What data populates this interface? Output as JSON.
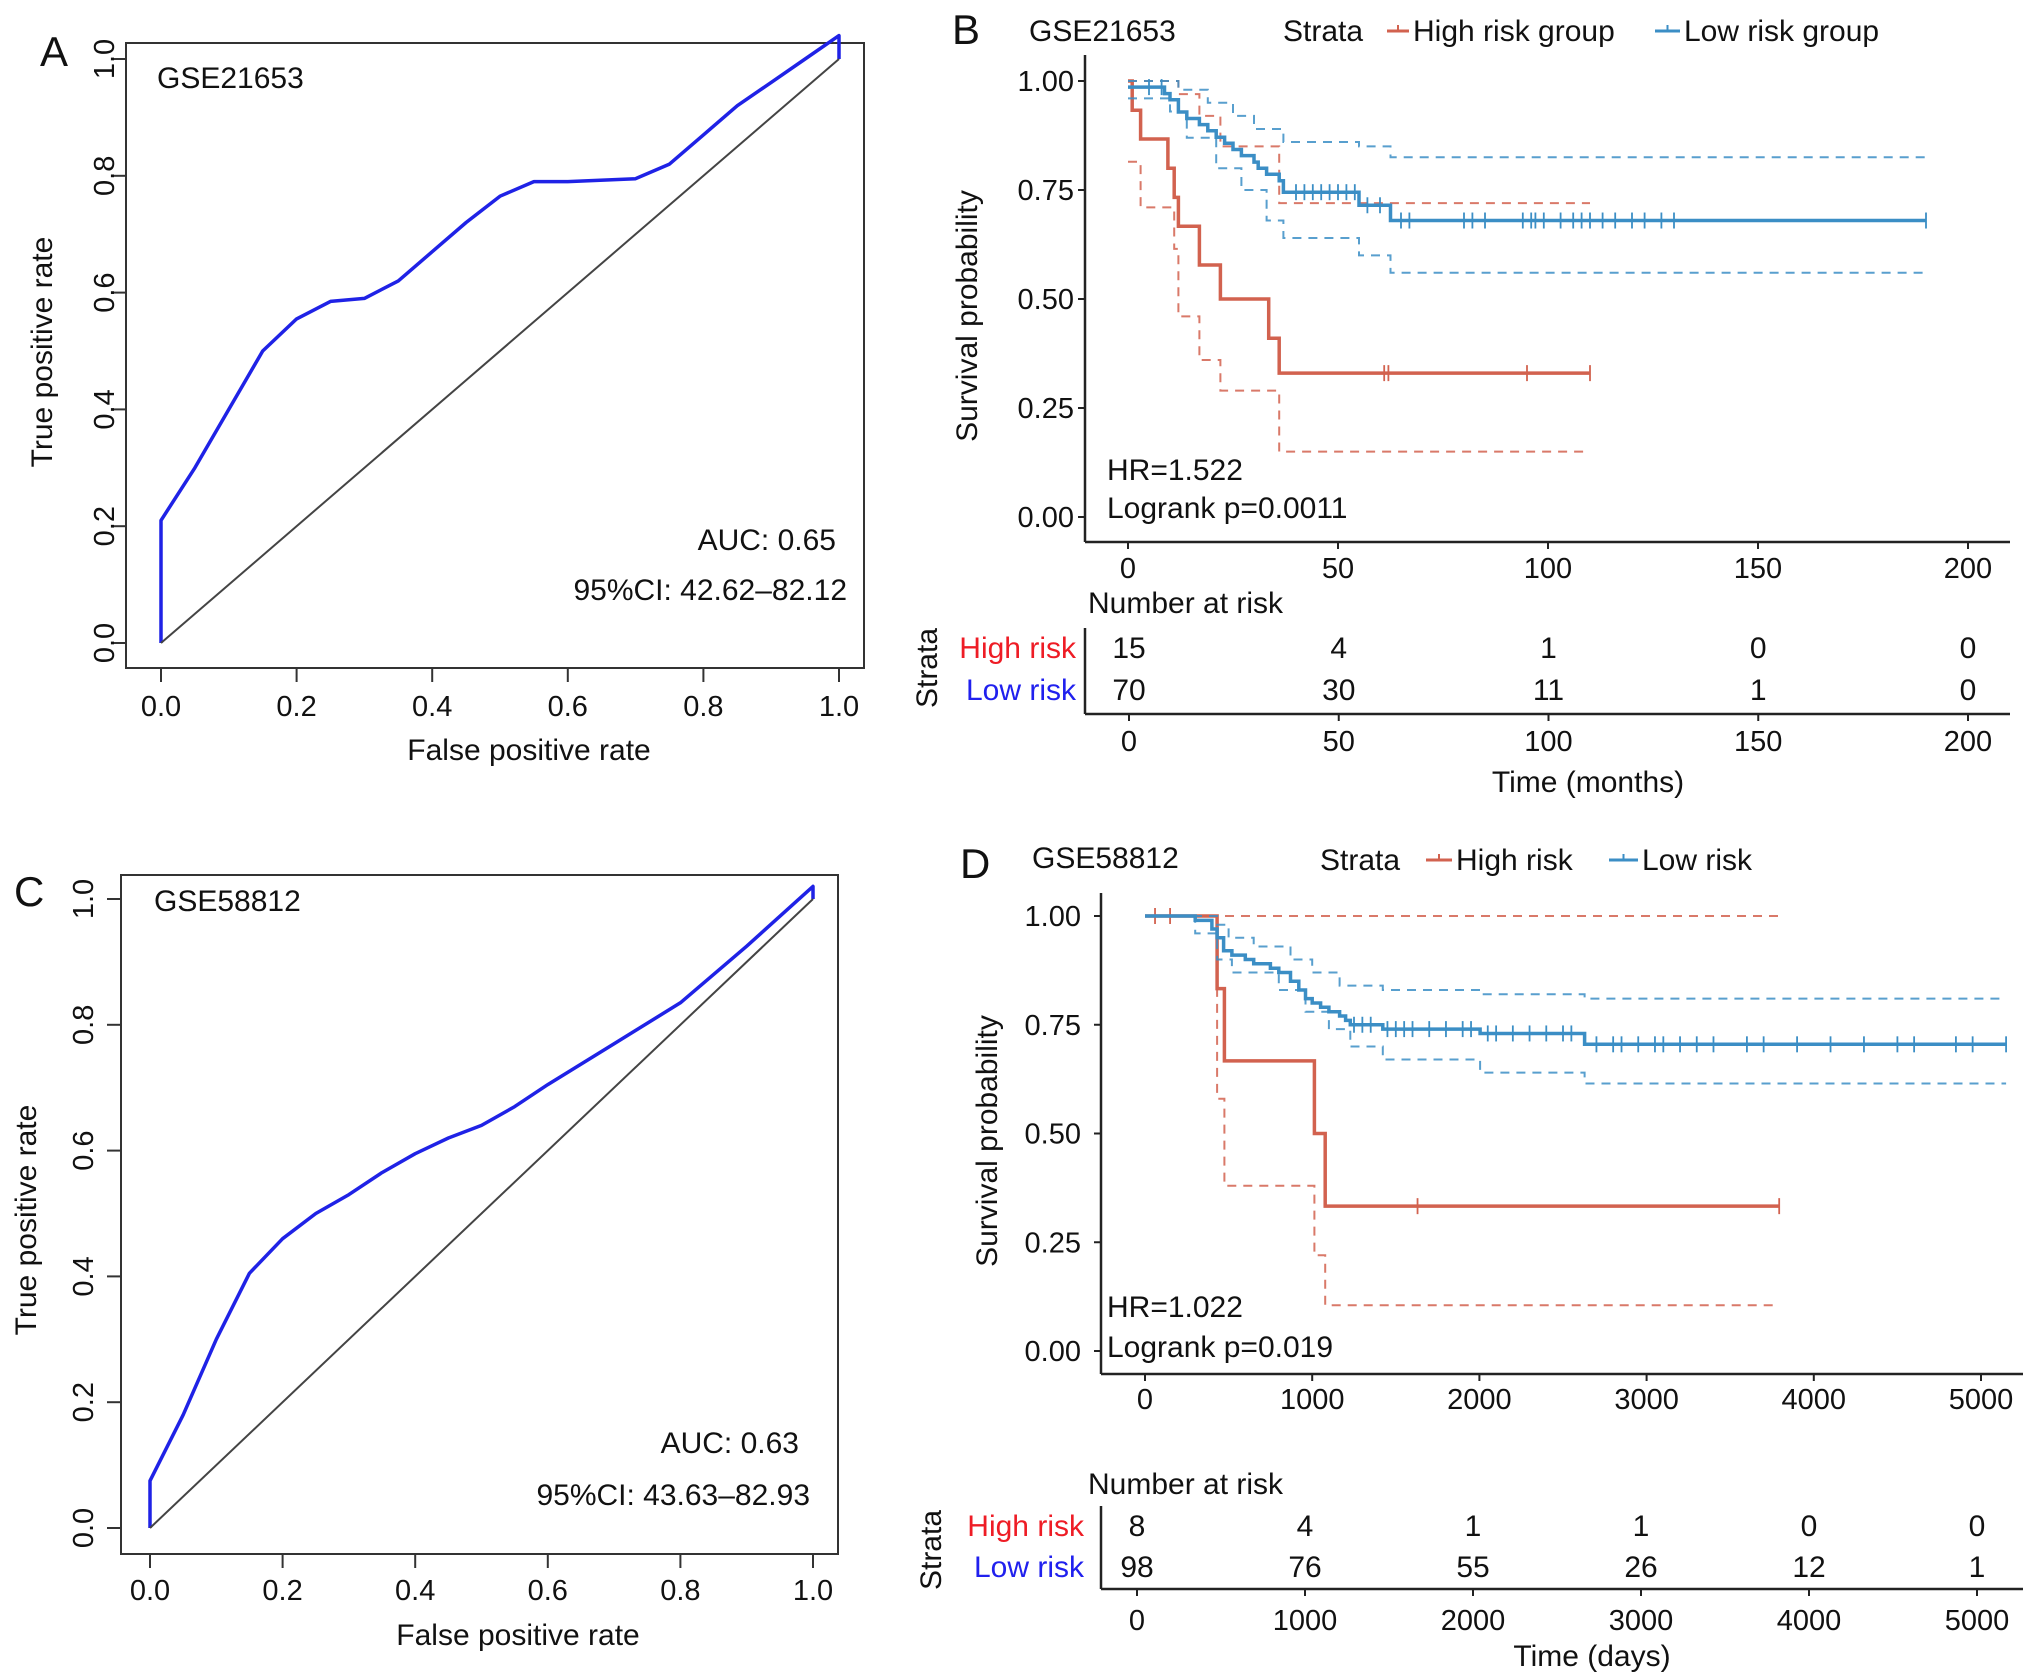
{
  "chart_data": [
    {
      "type": "line",
      "panel_label": "A",
      "title": "GSE21653",
      "xlabel": "False positive rate",
      "ylabel": "True positive rate",
      "xlim": [
        0,
        1
      ],
      "ylim": [
        0,
        1
      ],
      "xticks": [
        "0.0",
        "0.2",
        "0.4",
        "0.6",
        "0.8",
        "1.0"
      ],
      "yticks": [
        "0.0",
        "0.2",
        "0.4",
        "0.6",
        "0.8",
        "1.0"
      ],
      "grid": false,
      "series": [
        {
          "role": "roc",
          "color": "#1f22e6",
          "points": [
            [
              0,
              0
            ],
            [
              0,
              0.21
            ],
            [
              0.05,
              0.3
            ],
            [
              0.1,
              0.4
            ],
            [
              0.15,
              0.5
            ],
            [
              0.2,
              0.555
            ],
            [
              0.25,
              0.585
            ],
            [
              0.3,
              0.59
            ],
            [
              0.35,
              0.62
            ],
            [
              0.4,
              0.67
            ],
            [
              0.45,
              0.72
            ],
            [
              0.5,
              0.765
            ],
            [
              0.55,
              0.79
            ],
            [
              0.6,
              0.79
            ],
            [
              0.7,
              0.795
            ],
            [
              0.75,
              0.82
            ],
            [
              0.8,
              0.87
            ],
            [
              0.85,
              0.92
            ],
            [
              0.9,
              0.96
            ],
            [
              0.95,
              1.0
            ],
            [
              1.0,
              1.04
            ],
            [
              1.0,
              1.0
            ]
          ]
        },
        {
          "role": "reference",
          "color": "#444444",
          "points": [
            [
              0,
              0
            ],
            [
              1,
              1
            ]
          ]
        }
      ],
      "annotations": [
        "AUC:  0.65",
        "95%CI:  42.62–82.12"
      ]
    },
    {
      "type": "line",
      "subtype": "kaplan-meier",
      "panel_label": "B",
      "title": "GSE21653",
      "legend_title": "Strata",
      "legend_position": "top",
      "xlabel": "Time (months)",
      "ylabel": "Survival probability",
      "xlim": [
        0,
        200
      ],
      "ylim": [
        0,
        1
      ],
      "xticks": [
        "0",
        "50",
        "100",
        "150",
        "200"
      ],
      "yticks": [
        "0.00",
        "0.25",
        "0.50",
        "0.75",
        "1.00"
      ],
      "series": [
        {
          "name": "High risk group",
          "color": "#d2624f",
          "steps": [
            [
              0,
              1
            ],
            [
              1,
              0.933
            ],
            [
              3,
              0.867
            ],
            [
              9.5,
              0.8
            ],
            [
              11,
              0.733
            ],
            [
              12,
              0.667
            ],
            [
              17,
              0.578
            ],
            [
              22,
              0.5
            ],
            [
              33.5,
              0.41
            ],
            [
              36,
              0.33
            ]
          ],
          "end": 110,
          "ci_upper": [
            [
              0,
              1
            ],
            [
              12,
              0.97
            ],
            [
              17,
              0.92
            ],
            [
              22,
              0.85
            ],
            [
              36,
              0.72
            ]
          ],
          "ci_lower": [
            [
              0,
              0.815
            ],
            [
              3,
              0.71
            ],
            [
              11,
              0.615
            ],
            [
              12,
              0.46
            ],
            [
              17,
              0.36
            ],
            [
              22,
              0.29
            ],
            [
              36,
              0.15
            ]
          ],
          "censored": [
            61,
            62,
            95,
            110
          ]
        },
        {
          "name": "Low risk group",
          "color": "#3b8ec5",
          "steps": [
            [
              0,
              0.986
            ],
            [
              8.7,
              0.971
            ],
            [
              10,
              0.957
            ],
            [
              12,
              0.929
            ],
            [
              14,
              0.914
            ],
            [
              17,
              0.9
            ],
            [
              19,
              0.886
            ],
            [
              21,
              0.871
            ],
            [
              23,
              0.857
            ],
            [
              25,
              0.843
            ],
            [
              27,
              0.829
            ],
            [
              30,
              0.814
            ],
            [
              31,
              0.8
            ],
            [
              33,
              0.786
            ],
            [
              36,
              0.771
            ],
            [
              37,
              0.745
            ],
            [
              55,
              0.715
            ],
            [
              62.5,
              0.68
            ]
          ],
          "end": 190,
          "ci_upper": [
            [
              0,
              1
            ],
            [
              12,
              0.98
            ],
            [
              19,
              0.95
            ],
            [
              25,
              0.92
            ],
            [
              30,
              0.89
            ],
            [
              37,
              0.86
            ],
            [
              55,
              0.85
            ],
            [
              62.5,
              0.825
            ]
          ],
          "ci_lower": [
            [
              0,
              0.96
            ],
            [
              10,
              0.93
            ],
            [
              14,
              0.87
            ],
            [
              21,
              0.8
            ],
            [
              27,
              0.75
            ],
            [
              33,
              0.68
            ],
            [
              37,
              0.64
            ],
            [
              55,
              0.6
            ],
            [
              62.5,
              0.56
            ]
          ],
          "censored": [
            5,
            8,
            40,
            42,
            44,
            46,
            48,
            50,
            52,
            54,
            57,
            60,
            65,
            67,
            80,
            82,
            85,
            94,
            96,
            97,
            99,
            103,
            106,
            108,
            110,
            113,
            116,
            120,
            123,
            127,
            130,
            190
          ]
        }
      ],
      "annotations": [
        "HR=1.522",
        "Logrank p=0.0011"
      ],
      "risk_table": {
        "title": "Number at risk",
        "ylabel": "Strata",
        "times": [
          "0",
          "50",
          "100",
          "150",
          "200"
        ],
        "rows": [
          {
            "label": "High risk",
            "color": "#ee1c25",
            "values": [
              "15",
              "4",
              "1",
              "0",
              "0"
            ]
          },
          {
            "label": "Low risk",
            "color": "#2020ee",
            "values": [
              "70",
              "30",
              "11",
              "1",
              "0"
            ]
          }
        ]
      }
    },
    {
      "type": "line",
      "panel_label": "C",
      "title": "GSE58812",
      "xlabel": "False positive rate",
      "ylabel": "True positive rate",
      "xlim": [
        0,
        1
      ],
      "ylim": [
        0,
        1
      ],
      "xticks": [
        "0.0",
        "0.2",
        "0.4",
        "0.6",
        "0.8",
        "1.0"
      ],
      "yticks": [
        "0.0",
        "0.2",
        "0.4",
        "0.6",
        "0.8",
        "1.0"
      ],
      "grid": false,
      "series": [
        {
          "role": "roc",
          "color": "#1f22e6",
          "points": [
            [
              0,
              0
            ],
            [
              0,
              0.075
            ],
            [
              0.05,
              0.18
            ],
            [
              0.1,
              0.3
            ],
            [
              0.15,
              0.405
            ],
            [
              0.2,
              0.46
            ],
            [
              0.25,
              0.5
            ],
            [
              0.3,
              0.53
            ],
            [
              0.35,
              0.565
            ],
            [
              0.4,
              0.595
            ],
            [
              0.45,
              0.62
            ],
            [
              0.5,
              0.64
            ],
            [
              0.55,
              0.67
            ],
            [
              0.6,
              0.705
            ],
            [
              0.7,
              0.77
            ],
            [
              0.8,
              0.835
            ],
            [
              0.9,
              0.925
            ],
            [
              1.0,
              1.02
            ],
            [
              1.0,
              1.0
            ]
          ]
        },
        {
          "role": "reference",
          "color": "#444444",
          "points": [
            [
              0,
              0
            ],
            [
              1,
              1
            ]
          ]
        }
      ],
      "annotations": [
        "AUC:  0.63",
        "95%CI:  43.63–82.93"
      ]
    },
    {
      "type": "line",
      "subtype": "kaplan-meier",
      "panel_label": "D",
      "title": "GSE58812",
      "legend_title": "Strata",
      "legend_position": "top",
      "xlabel": "Time (days)",
      "ylabel": "Survival probability",
      "xlim": [
        0,
        5000
      ],
      "ylim": [
        0,
        1
      ],
      "xticks": [
        "0",
        "1000",
        "2000",
        "3000",
        "4000",
        "5000"
      ],
      "yticks": [
        "0.00",
        "0.25",
        "0.50",
        "0.75",
        "1.00"
      ],
      "series": [
        {
          "name": "High risk",
          "color": "#d2624f",
          "steps": [
            [
              0,
              1
            ],
            [
              431,
              0.833
            ],
            [
              475,
              0.667
            ],
            [
              1013,
              0.5
            ],
            [
              1078,
              0.333
            ]
          ],
          "end": 3793,
          "ci_upper": [
            [
              0,
              1
            ]
          ],
          "ci_lower": [
            [
              0,
              1
            ],
            [
              431,
              0.58
            ],
            [
              475,
              0.38
            ],
            [
              1013,
              0.22
            ],
            [
              1078,
              0.105
            ]
          ],
          "censored": [
            60,
            150,
            1630,
            3793
          ]
        },
        {
          "name": "Low risk",
          "color": "#3b8ec5",
          "steps": [
            [
              0,
              1
            ],
            [
              300,
              0.99
            ],
            [
              400,
              0.97
            ],
            [
              431,
              0.95
            ],
            [
              470,
              0.92
            ],
            [
              520,
              0.91
            ],
            [
              600,
              0.9
            ],
            [
              650,
              0.89
            ],
            [
              750,
              0.88
            ],
            [
              800,
              0.87
            ],
            [
              870,
              0.85
            ],
            [
              920,
              0.83
            ],
            [
              960,
              0.81
            ],
            [
              1000,
              0.8
            ],
            [
              1050,
              0.79
            ],
            [
              1100,
              0.78
            ],
            [
              1164,
              0.77
            ],
            [
              1200,
              0.76
            ],
            [
              1228,
              0.75
            ],
            [
              1422,
              0.74
            ],
            [
              2004,
              0.73
            ],
            [
              2629,
              0.705
            ]
          ],
          "end": 5150,
          "ci_upper": [
            [
              0,
              1
            ],
            [
              431,
              0.98
            ],
            [
              500,
              0.95
            ],
            [
              650,
              0.93
            ],
            [
              870,
              0.9
            ],
            [
              1000,
              0.87
            ],
            [
              1164,
              0.84
            ],
            [
              1422,
              0.83
            ],
            [
              2004,
              0.82
            ],
            [
              2629,
              0.81
            ]
          ],
          "ci_lower": [
            [
              0,
              1
            ],
            [
              300,
              0.96
            ],
            [
              431,
              0.9
            ],
            [
              520,
              0.87
            ],
            [
              800,
              0.83
            ],
            [
              960,
              0.78
            ],
            [
              1100,
              0.74
            ],
            [
              1228,
              0.7
            ],
            [
              1422,
              0.67
            ],
            [
              2004,
              0.64
            ],
            [
              2629,
              0.615
            ]
          ],
          "censored": [
            1250,
            1300,
            1350,
            1450,
            1500,
            1550,
            1600,
            1700,
            1800,
            1900,
            1950,
            2050,
            2100,
            2200,
            2300,
            2400,
            2500,
            2550,
            2700,
            2800,
            2850,
            2950,
            3050,
            3100,
            3200,
            3300,
            3400,
            3600,
            3700,
            3900,
            4100,
            4300,
            4500,
            4600,
            4850,
            4950,
            5150
          ]
        }
      ],
      "annotations": [
        "HR=1.022",
        "Logrank p=0.019"
      ],
      "risk_table": {
        "title": "Number at risk",
        "ylabel": "Strata",
        "times": [
          "0",
          "1000",
          "2000",
          "3000",
          "4000",
          "5000"
        ],
        "rows": [
          {
            "label": "High risk",
            "color": "#ee1c25",
            "values": [
              "8",
              "4",
              "1",
              "1",
              "0",
              "0"
            ]
          },
          {
            "label": "Low risk",
            "color": "#2020ee",
            "values": [
              "98",
              "76",
              "55",
              "26",
              "12",
              "1"
            ]
          }
        ]
      }
    }
  ]
}
